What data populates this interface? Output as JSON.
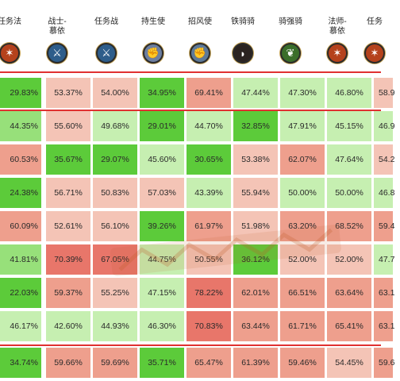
{
  "headers": [
    {
      "label": "任务法",
      "icon": "fire-staff-icon",
      "color": "#b5421c"
    },
    {
      "label": "战士-\n慕依",
      "icon": "sword-icon",
      "color": "#2e5d8a"
    },
    {
      "label": "任务战",
      "icon": "greatsword-icon",
      "color": "#2e5d8a"
    },
    {
      "label": "持生使",
      "icon": "fist-icon",
      "color": "#6d7fa0"
    },
    {
      "label": "招风使",
      "icon": "fist-icon",
      "color": "#5e7a98"
    },
    {
      "label": "铁骑骑",
      "icon": "bow-icon",
      "color": "#2b2320"
    },
    {
      "label": "骑强骑",
      "icon": "antler-icon",
      "color": "#3b6e2a"
    },
    {
      "label": "法师-\n慕依",
      "icon": "fire-staff-icon",
      "color": "#b5421c"
    },
    {
      "label": "任务",
      "icon": "fire-staff-icon",
      "color": "#b5421c"
    }
  ],
  "rows": [
    [
      "29.83%",
      "53.37%",
      "54.00%",
      "34.95%",
      "69.41%",
      "47.44%",
      "47.30%",
      "46.80%",
      "58.9"
    ],
    [
      "44.35%",
      "55.60%",
      "49.68%",
      "29.01%",
      "44.70%",
      "32.85%",
      "47.91%",
      "45.15%",
      "46.9"
    ],
    [
      "60.53%",
      "35.67%",
      "29.07%",
      "45.60%",
      "30.65%",
      "53.38%",
      "62.07%",
      "47.64%",
      "54.2"
    ],
    [
      "24.38%",
      "56.71%",
      "50.83%",
      "57.03%",
      "43.39%",
      "55.94%",
      "50.00%",
      "50.00%",
      "46.8"
    ],
    [
      "60.09%",
      "52.61%",
      "56.10%",
      "39.26%",
      "61.97%",
      "51.98%",
      "63.20%",
      "68.52%",
      "59.4"
    ],
    [
      "41.81%",
      "70.39%",
      "67.05%",
      "44.75%",
      "50.55%",
      "36.12%",
      "52.00%",
      "52.00%",
      "47.7"
    ],
    [
      "22.03%",
      "59.37%",
      "55.25%",
      "47.15%",
      "78.22%",
      "62.01%",
      "66.51%",
      "63.64%",
      "63.1"
    ],
    [
      "46.17%",
      "42.60%",
      "44.93%",
      "46.30%",
      "70.83%",
      "63.44%",
      "61.71%",
      "65.41%",
      "63.1"
    ],
    [
      "34.74%",
      "59.66%",
      "59.69%",
      "35.71%",
      "65.47%",
      "61.39%",
      "59.46%",
      "54.45%",
      "59.6"
    ]
  ],
  "shades": [
    [
      "g1",
      "p1",
      "p1",
      "g1",
      "p2",
      "g3",
      "g3",
      "g3",
      "p1"
    ],
    [
      "g2",
      "p1",
      "g3",
      "g1",
      "g3",
      "g1",
      "g3",
      "g3",
      "g3"
    ],
    [
      "p2",
      "g1",
      "g1",
      "g3",
      "g1",
      "p1",
      "p2",
      "g3",
      "p1"
    ],
    [
      "g1",
      "p1",
      "p1",
      "p1",
      "g3",
      "p1",
      "g3",
      "g3",
      "g3"
    ],
    [
      "p2",
      "p1",
      "p1",
      "g1",
      "p2",
      "p1",
      "p2",
      "p2",
      "p2"
    ],
    [
      "g2",
      "p3",
      "p3",
      "g3",
      "p1",
      "g1",
      "p1",
      "p1",
      "g3"
    ],
    [
      "g1",
      "p2",
      "p1",
      "g3",
      "p3",
      "p2",
      "p2",
      "p2",
      "p2"
    ],
    [
      "g3",
      "g3",
      "g3",
      "g3",
      "p3",
      "p2",
      "p2",
      "p2",
      "p2"
    ],
    [
      "g1",
      "p2",
      "p2",
      "g1",
      "p2",
      "p2",
      "p2",
      "p1",
      "p2"
    ]
  ]
}
